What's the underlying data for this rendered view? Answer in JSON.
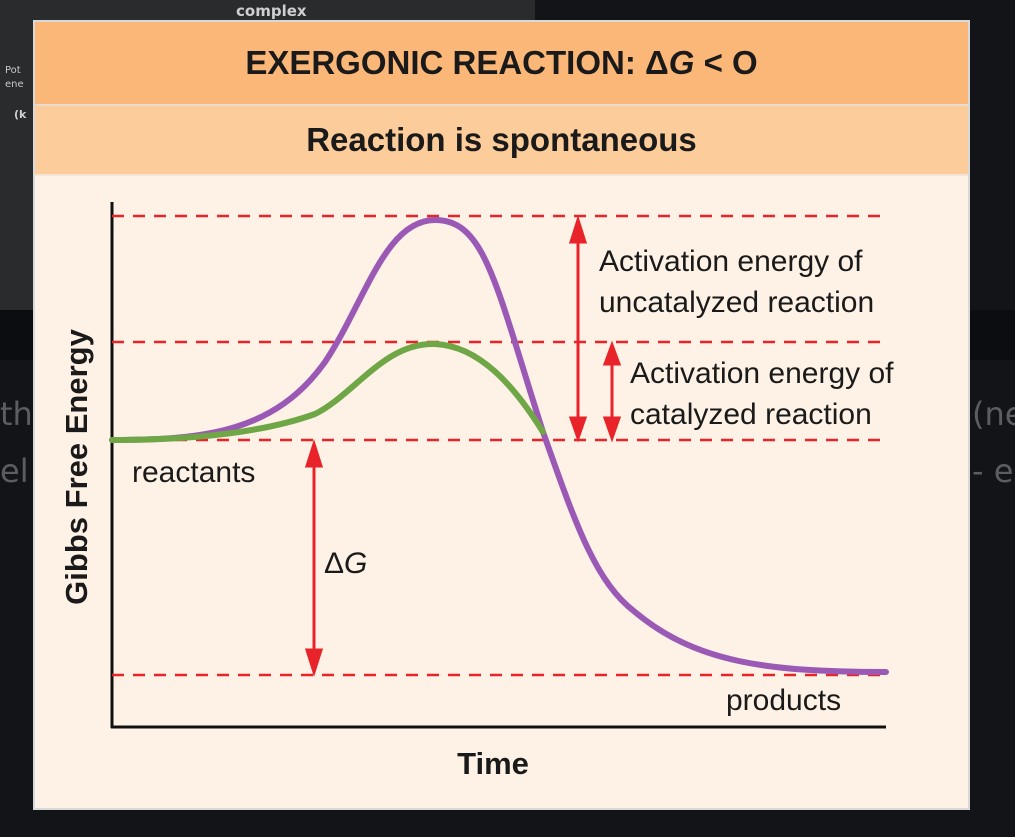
{
  "background": {
    "top_text": "complex",
    "side_text_lines": [
      "Pot",
      "ene",
      "(k"
    ],
    "left_fragments": [
      "tha",
      "el"
    ],
    "right_fragments": [
      "(ne",
      "- e"
    ]
  },
  "header": {
    "title_prefix": "EXERGONIC REACTION: ΔG",
    "title_delta": "Δ",
    "title_g": "G",
    "title_suffix": " < O",
    "subtitle": "Reaction is spontaneous"
  },
  "diagram": {
    "y_axis_label": "Gibbs Free Energy",
    "x_axis_label": "Time",
    "labels": {
      "reactants": "reactants",
      "products": "products",
      "delta_g_symbol": "Δ",
      "delta_g_letter": "G",
      "uncatalyzed_line1": "Activation energy of",
      "uncatalyzed_line2": "uncatalyzed reaction",
      "catalyzed_line1": "Activation energy of",
      "catalyzed_line2": "catalyzed reaction"
    },
    "colors": {
      "uncatalyzed_curve": "#9b59b6",
      "catalyzed_curve": "#6fa646",
      "guide_lines": "#e8232a",
      "arrows": "#e8232a",
      "axis": "#111111"
    },
    "energy_levels": {
      "uncatalyzed_peak": 1.0,
      "catalyzed_peak": 0.74,
      "reactants": 0.52,
      "products": 0.0
    }
  }
}
